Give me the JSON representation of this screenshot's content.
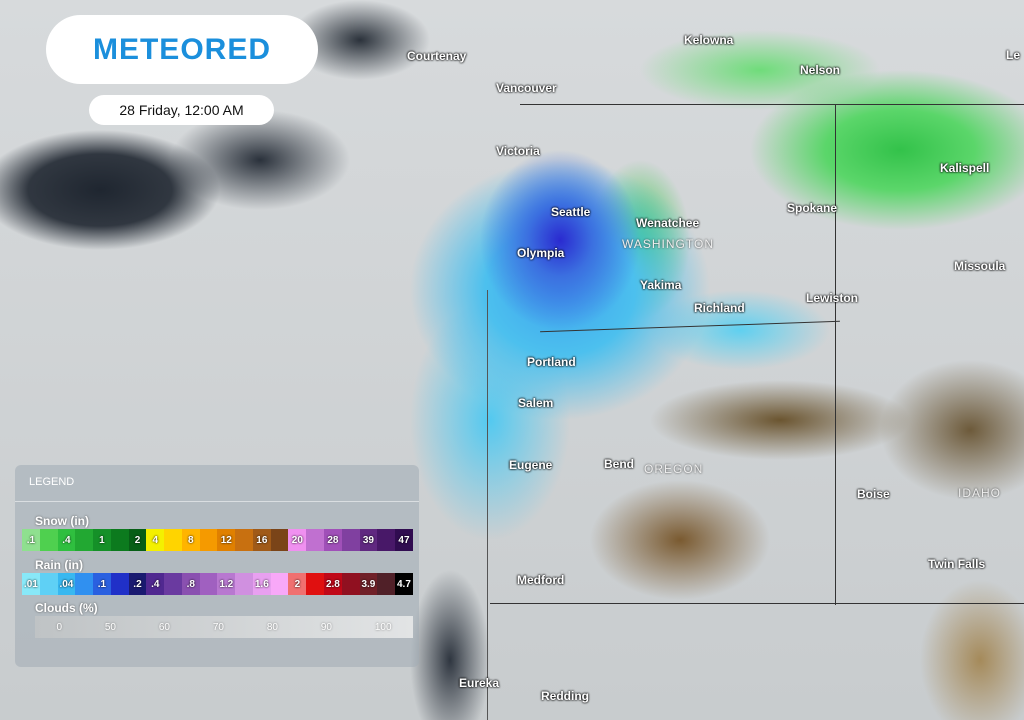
{
  "brand": {
    "logo": "METEORED"
  },
  "timestamp": "28 Friday, 12:00 AM",
  "cities": [
    {
      "name": "Courtenay"
    },
    {
      "name": "Vancouver"
    },
    {
      "name": "Victoria"
    },
    {
      "name": "Seattle"
    },
    {
      "name": "Olympia"
    },
    {
      "name": "Wenatchee"
    },
    {
      "name": "Yakima"
    },
    {
      "name": "Richland"
    },
    {
      "name": "Spokane"
    },
    {
      "name": "Lewiston"
    },
    {
      "name": "Portland"
    },
    {
      "name": "Salem"
    },
    {
      "name": "Eugene"
    },
    {
      "name": "Bend"
    },
    {
      "name": "Medford"
    },
    {
      "name": "Eureka"
    },
    {
      "name": "Redding"
    },
    {
      "name": "Boise"
    },
    {
      "name": "Twin Falls"
    },
    {
      "name": "Missoula"
    },
    {
      "name": "Kalispell"
    },
    {
      "name": "Nelson"
    },
    {
      "name": "Kelowna"
    },
    {
      "name": "Le"
    }
  ],
  "regions": [
    "WASHINGTON",
    "OREGON",
    "IDAHO"
  ],
  "legend": {
    "title": "LEGEND",
    "snow_label": "Snow (in)",
    "snow": [
      {
        "l": ".1",
        "c": "#8fe08f"
      },
      {
        "l": "",
        "c": "#4fd04f"
      },
      {
        "l": ".4",
        "c": "#2fbf3f"
      },
      {
        "l": "",
        "c": "#22a832"
      },
      {
        "l": "1",
        "c": "#159028"
      },
      {
        "l": "",
        "c": "#0c7a1e"
      },
      {
        "l": "2",
        "c": "#075e16"
      },
      {
        "l": "4",
        "c": "#f4f000"
      },
      {
        "l": "",
        "c": "#ffd400"
      },
      {
        "l": "8",
        "c": "#ffb400"
      },
      {
        "l": "",
        "c": "#f59a00"
      },
      {
        "l": "12",
        "c": "#e08000"
      },
      {
        "l": "",
        "c": "#c87010"
      },
      {
        "l": "16",
        "c": "#a05a18"
      },
      {
        "l": "",
        "c": "#7a4418"
      },
      {
        "l": "20",
        "c": "#f090f0"
      },
      {
        "l": "",
        "c": "#c070d0"
      },
      {
        "l": "28",
        "c": "#a050b8"
      },
      {
        "l": "",
        "c": "#8040a0"
      },
      {
        "l": "39",
        "c": "#602880"
      },
      {
        "l": "",
        "c": "#481868"
      },
      {
        "l": "47",
        "c": "#300c50"
      }
    ],
    "rain_label": "Rain (in)",
    "rain": [
      {
        "l": ".01",
        "c": "#88e8f8"
      },
      {
        "l": "",
        "c": "#5fd0f5"
      },
      {
        "l": ".04",
        "c": "#38b8f0"
      },
      {
        "l": "",
        "c": "#3090f0"
      },
      {
        "l": ".1",
        "c": "#2a60e0"
      },
      {
        "l": "",
        "c": "#2030c8"
      },
      {
        "l": ".2",
        "c": "#1a1a70"
      },
      {
        "l": ".4",
        "c": "#502890"
      },
      {
        "l": "",
        "c": "#6a3aa0"
      },
      {
        "l": ".8",
        "c": "#8a50b0"
      },
      {
        "l": "",
        "c": "#a060c0"
      },
      {
        "l": "1.2",
        "c": "#b878d0"
      },
      {
        "l": "",
        "c": "#d090e0"
      },
      {
        "l": "1.6",
        "c": "#e8a0f0"
      },
      {
        "l": "",
        "c": "#f8a8f8"
      },
      {
        "l": "2",
        "c": "#f07070"
      },
      {
        "l": "",
        "c": "#e01010"
      },
      {
        "l": "2.8",
        "c": "#c00818"
      },
      {
        "l": "",
        "c": "#901020"
      },
      {
        "l": "3.9",
        "c": "#702028"
      },
      {
        "l": "",
        "c": "#502028"
      },
      {
        "l": "4.7",
        "c": "#000000"
      }
    ],
    "clouds_label": "Clouds (%)",
    "clouds": [
      "0",
      "50",
      "60",
      "70",
      "80",
      "90",
      "100"
    ]
  }
}
